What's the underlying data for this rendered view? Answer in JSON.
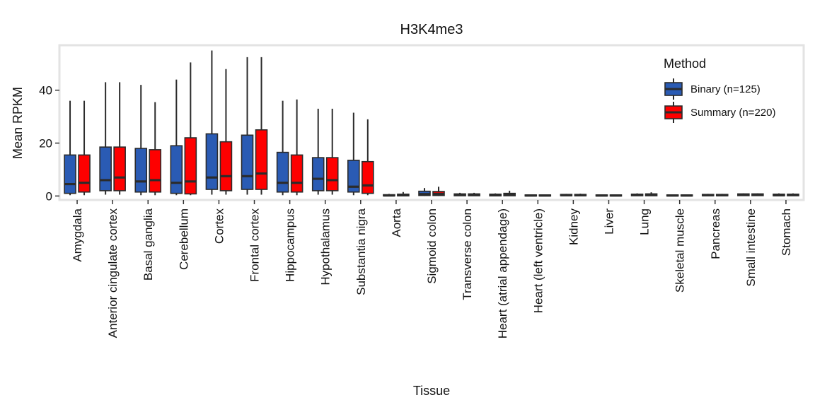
{
  "chart_data": {
    "type": "box",
    "title": "H3K4me3",
    "xlabel": "Tissue",
    "ylabel": "Mean RPKM",
    "ylim": [
      -1.5,
      57
    ],
    "yticks": [
      0,
      20,
      40
    ],
    "grid": false,
    "legend": {
      "title": "Method",
      "position": "top-right",
      "entries": [
        "Binary (n=125)",
        "Summary (n=220)"
      ]
    },
    "colors": {
      "Binary (n=125)": "#2a5bb4",
      "Summary (n=220)": "#fe0000",
      "stroke": "#2b2b2b",
      "panel_border": "#e3e3e3"
    },
    "categories": [
      "Amygdala",
      "Anterior cingulate cortex",
      "Basal ganglia",
      "Cerebellum",
      "Cortex",
      "Frontal cortex",
      "Hippocampus",
      "Hypothalamus",
      "Substantia nigra",
      "Aorta",
      "Sigmoid colon",
      "Transverse colon",
      "Heart (atrial appendage)",
      "Heart (left ventricle)",
      "Kidney",
      "Liver",
      "Lung",
      "Skeletal muscle",
      "Pancreas",
      "Small intestine",
      "Stomach"
    ],
    "series": [
      {
        "name": "Binary (n=125)",
        "boxes": [
          {
            "min": 0.3,
            "q1": 1.0,
            "median": 4.5,
            "q3": 15.5,
            "max": 36.0
          },
          {
            "min": 0.5,
            "q1": 2.0,
            "median": 6.0,
            "q3": 18.5,
            "max": 43.0
          },
          {
            "min": 0.3,
            "q1": 1.5,
            "median": 5.5,
            "q3": 18.0,
            "max": 42.0
          },
          {
            "min": 0.3,
            "q1": 1.0,
            "median": 5.0,
            "q3": 19.0,
            "max": 44.0
          },
          {
            "min": 0.5,
            "q1": 2.5,
            "median": 7.0,
            "q3": 23.5,
            "max": 55.0
          },
          {
            "min": 0.5,
            "q1": 2.5,
            "median": 7.5,
            "q3": 23.0,
            "max": 52.5
          },
          {
            "min": 0.3,
            "q1": 1.5,
            "median": 5.0,
            "q3": 16.5,
            "max": 36.0
          },
          {
            "min": 0.5,
            "q1": 2.0,
            "median": 6.5,
            "q3": 14.5,
            "max": 33.0
          },
          {
            "min": 0.3,
            "q1": 1.5,
            "median": 3.5,
            "q3": 13.5,
            "max": 31.5
          },
          {
            "min": 0.0,
            "q1": 0.05,
            "median": 0.2,
            "q3": 0.5,
            "max": 0.8
          },
          {
            "min": 0.0,
            "q1": 0.2,
            "median": 0.7,
            "q3": 1.8,
            "max": 3.0
          },
          {
            "min": 0.0,
            "q1": 0.1,
            "median": 0.4,
            "q3": 0.8,
            "max": 1.2
          },
          {
            "min": 0.0,
            "q1": 0.05,
            "median": 0.3,
            "q3": 0.7,
            "max": 1.0
          },
          {
            "min": 0.0,
            "q1": 0.05,
            "median": 0.2,
            "q3": 0.4,
            "max": 0.6
          },
          {
            "min": 0.0,
            "q1": 0.1,
            "median": 0.3,
            "q3": 0.6,
            "max": 0.8
          },
          {
            "min": 0.0,
            "q1": 0.05,
            "median": 0.2,
            "q3": 0.4,
            "max": 0.6
          },
          {
            "min": 0.0,
            "q1": 0.1,
            "median": 0.4,
            "q3": 0.7,
            "max": 1.0
          },
          {
            "min": 0.0,
            "q1": 0.05,
            "median": 0.2,
            "q3": 0.4,
            "max": 0.6
          },
          {
            "min": 0.0,
            "q1": 0.1,
            "median": 0.3,
            "q3": 0.6,
            "max": 0.8
          },
          {
            "min": 0.0,
            "q1": 0.15,
            "median": 0.4,
            "q3": 0.8,
            "max": 1.0
          },
          {
            "min": 0.0,
            "q1": 0.1,
            "median": 0.3,
            "q3": 0.7,
            "max": 1.0
          }
        ]
      },
      {
        "name": "Summary (n=220)",
        "boxes": [
          {
            "min": 0.3,
            "q1": 1.5,
            "median": 5.0,
            "q3": 15.5,
            "max": 36.0
          },
          {
            "min": 0.5,
            "q1": 2.0,
            "median": 7.0,
            "q3": 18.5,
            "max": 43.0
          },
          {
            "min": 0.3,
            "q1": 1.5,
            "median": 6.0,
            "q3": 17.5,
            "max": 35.5
          },
          {
            "min": 0.3,
            "q1": 0.8,
            "median": 5.5,
            "q3": 22.0,
            "max": 50.5
          },
          {
            "min": 0.5,
            "q1": 2.0,
            "median": 7.5,
            "q3": 20.5,
            "max": 48.0
          },
          {
            "min": 0.5,
            "q1": 2.5,
            "median": 8.5,
            "q3": 25.0,
            "max": 52.5
          },
          {
            "min": 0.3,
            "q1": 1.5,
            "median": 5.0,
            "q3": 15.5,
            "max": 36.5
          },
          {
            "min": 0.5,
            "q1": 2.0,
            "median": 6.0,
            "q3": 14.5,
            "max": 33.0
          },
          {
            "min": 0.3,
            "q1": 1.0,
            "median": 4.0,
            "q3": 13.0,
            "max": 29.0
          },
          {
            "min": 0.0,
            "q1": 0.05,
            "median": 0.3,
            "q3": 0.7,
            "max": 1.5
          },
          {
            "min": 0.0,
            "q1": 0.2,
            "median": 0.8,
            "q3": 1.7,
            "max": 3.5
          },
          {
            "min": 0.0,
            "q1": 0.1,
            "median": 0.4,
            "q3": 0.8,
            "max": 1.2
          },
          {
            "min": 0.0,
            "q1": 0.1,
            "median": 0.5,
            "q3": 1.0,
            "max": 2.0
          },
          {
            "min": 0.0,
            "q1": 0.05,
            "median": 0.2,
            "q3": 0.4,
            "max": 0.6
          },
          {
            "min": 0.0,
            "q1": 0.1,
            "median": 0.3,
            "q3": 0.6,
            "max": 0.9
          },
          {
            "min": 0.0,
            "q1": 0.05,
            "median": 0.2,
            "q3": 0.4,
            "max": 0.6
          },
          {
            "min": 0.0,
            "q1": 0.1,
            "median": 0.5,
            "q3": 0.8,
            "max": 1.4
          },
          {
            "min": 0.0,
            "q1": 0.05,
            "median": 0.2,
            "q3": 0.4,
            "max": 0.6
          },
          {
            "min": 0.0,
            "q1": 0.1,
            "median": 0.3,
            "q3": 0.6,
            "max": 0.8
          },
          {
            "min": 0.0,
            "q1": 0.15,
            "median": 0.4,
            "q3": 0.8,
            "max": 1.0
          },
          {
            "min": 0.0,
            "q1": 0.1,
            "median": 0.4,
            "q3": 0.7,
            "max": 1.0
          }
        ]
      }
    ]
  }
}
